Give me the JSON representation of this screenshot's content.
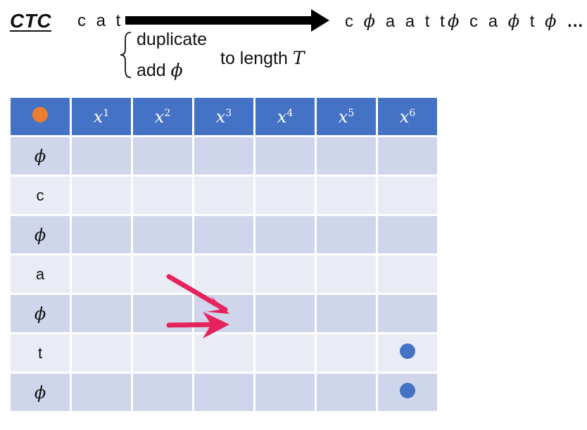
{
  "title": "CTC",
  "input_seq": "c a t",
  "output_seq_1_parts": [
    "c",
    "ϕ",
    "a a t t"
  ],
  "output_seq_2_parts": [
    "ϕ",
    "c a",
    "ϕ",
    "t",
    "ϕ"
  ],
  "ellipsis": "…",
  "operations": [
    "duplicate",
    "add"
  ],
  "phi_symbol": "ϕ",
  "to_length": "to length",
  "length_symbol": "T",
  "columns": [
    {
      "base": "x",
      "sup": "1"
    },
    {
      "base": "x",
      "sup": "2"
    },
    {
      "base": "x",
      "sup": "3"
    },
    {
      "base": "x",
      "sup": "4"
    },
    {
      "base": "x",
      "sup": "5"
    },
    {
      "base": "x",
      "sup": "6"
    }
  ],
  "rows": [
    "ϕ",
    "c",
    "ϕ",
    "a",
    "ϕ",
    "t",
    "ϕ"
  ],
  "colors": {
    "header": "#4472c4",
    "row_dark": "#cfd5ea",
    "row_light": "#e9ecf5",
    "start_dot": "#ed7d31",
    "path_dot": "#4472c4",
    "arrow": "#e5245e"
  },
  "path_dots": [
    {
      "row": 6,
      "col": 6
    },
    {
      "row": 7,
      "col": 6
    }
  ]
}
